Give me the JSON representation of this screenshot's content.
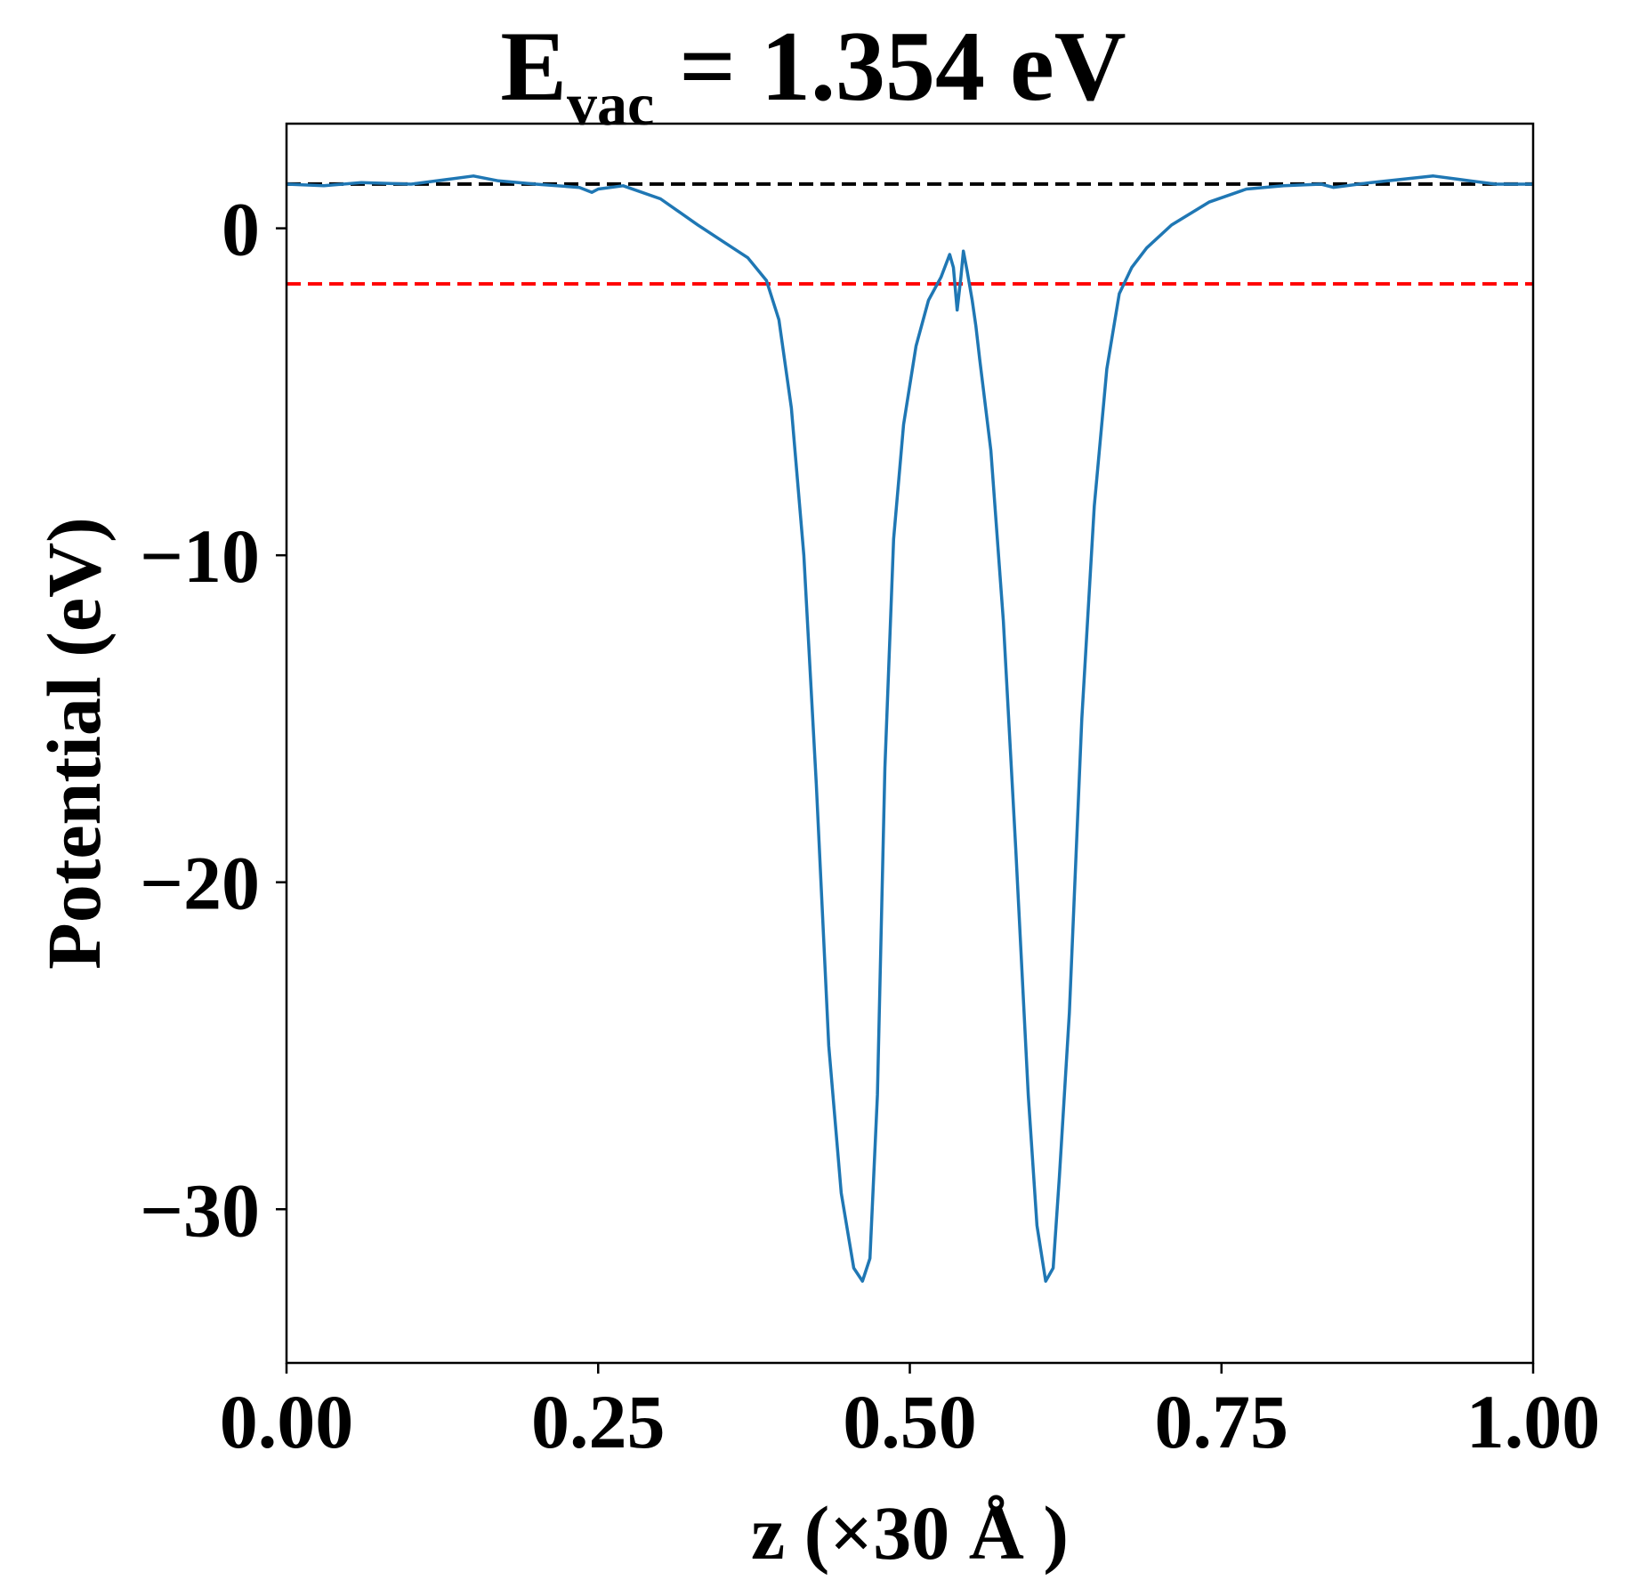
{
  "chart_data": {
    "type": "line",
    "title": {
      "main": "E",
      "subscript": "vac",
      "rest": " = 1.354 eV"
    },
    "xlabel": "z (×30 Å )",
    "ylabel": "Potential (eV)",
    "xlim": [
      0.0,
      1.0
    ],
    "ylim": [
      -34.7,
      3.2
    ],
    "xticks": [
      0.0,
      0.25,
      0.5,
      0.75,
      1.0
    ],
    "xtick_labels": [
      "0.00",
      "0.25",
      "0.50",
      "0.75",
      "1.00"
    ],
    "yticks": [
      0,
      -10,
      -20,
      -30
    ],
    "ytick_labels": [
      "0",
      "−10",
      "−20",
      "−30"
    ],
    "grid": false,
    "legend": "none",
    "reference_lines": [
      {
        "y": 1.354,
        "color": "#000000",
        "style": "dashed"
      },
      {
        "y": -1.7,
        "color": "#ff0000",
        "style": "dashed"
      }
    ],
    "series": [
      {
        "color": "#1f77b4",
        "x": [
          0.0,
          0.03,
          0.06,
          0.1,
          0.13,
          0.15,
          0.17,
          0.2,
          0.235,
          0.245,
          0.25,
          0.27,
          0.3,
          0.33,
          0.35,
          0.37,
          0.385,
          0.395,
          0.405,
          0.415,
          0.425,
          0.435,
          0.445,
          0.455,
          0.462,
          0.468,
          0.474,
          0.48,
          0.487,
          0.495,
          0.505,
          0.515,
          0.525,
          0.532,
          0.535,
          0.538,
          0.541,
          0.543,
          0.546,
          0.55,
          0.553,
          0.556,
          0.565,
          0.575,
          0.585,
          0.595,
          0.602,
          0.609,
          0.615,
          0.62,
          0.628,
          0.638,
          0.648,
          0.658,
          0.668,
          0.678,
          0.69,
          0.71,
          0.74,
          0.77,
          0.8,
          0.83,
          0.84,
          0.87,
          0.92,
          0.94,
          0.97,
          1.0
        ],
        "y": [
          1.35,
          1.3,
          1.4,
          1.35,
          1.5,
          1.6,
          1.45,
          1.35,
          1.25,
          1.1,
          1.2,
          1.3,
          0.9,
          0.1,
          -0.4,
          -0.9,
          -1.6,
          -2.8,
          -5.5,
          -10.0,
          -17.0,
          -25.0,
          -29.5,
          -31.8,
          -32.2,
          -31.5,
          -26.5,
          -16.5,
          -9.5,
          -6.0,
          -3.6,
          -2.2,
          -1.5,
          -0.8,
          -1.2,
          -2.5,
          -1.5,
          -0.7,
          -1.3,
          -2.2,
          -3.0,
          -4.0,
          -6.8,
          -12.0,
          -19.0,
          -26.5,
          -30.5,
          -32.2,
          -31.8,
          -29.0,
          -24.0,
          -15.0,
          -8.5,
          -4.3,
          -2.0,
          -1.2,
          -0.6,
          0.1,
          0.8,
          1.2,
          1.3,
          1.35,
          1.25,
          1.4,
          1.6,
          1.5,
          1.35,
          1.35
        ]
      }
    ]
  }
}
